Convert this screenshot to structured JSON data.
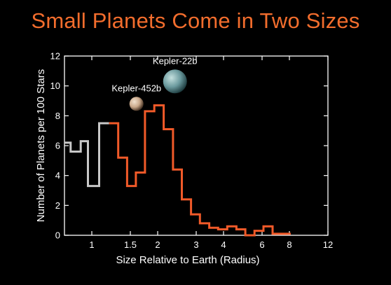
{
  "title": "Small Planets Come in Two Sizes",
  "colors": {
    "background": "#000000",
    "title": "#f26d2d",
    "axis": "#ffffff",
    "text": "#ffffff",
    "series_gray": "#c8c8c8",
    "series_orange": "#f15a29"
  },
  "chart_data": {
    "type": "line",
    "style": "step-histogram",
    "title": "Small Planets Come in Two Sizes",
    "xlabel": "Size Relative to Earth (Radius)",
    "ylabel": "Number of Planets per 100 Stars",
    "x_scale": "log",
    "xlim": [
      0.75,
      12
    ],
    "ylim": [
      0,
      12
    ],
    "x_ticks": [
      1,
      1.5,
      2,
      3,
      4,
      6,
      8,
      12
    ],
    "x_tick_labels": [
      "1",
      "1.5",
      "2",
      "3",
      "4",
      "6",
      "8",
      "12"
    ],
    "y_ticks": [
      0,
      2,
      4,
      6,
      8,
      10,
      12
    ],
    "y_tick_labels": [
      "0",
      "2",
      "4",
      "6",
      "8",
      "10",
      "12"
    ],
    "grid": false,
    "bin_edges": [
      0.75,
      0.8,
      0.89,
      0.96,
      1.08,
      1.2,
      1.32,
      1.45,
      1.59,
      1.75,
      1.93,
      2.13,
      2.35,
      2.58,
      2.84,
      3.12,
      3.44,
      3.78,
      4.16,
      4.58,
      5.03,
      5.54,
      6.09,
      6.7,
      7.37,
      8.11,
      8.92,
      9.81,
      10.8,
      11.9
    ],
    "series": [
      {
        "color": "#c8c8c8",
        "first_bin": 0,
        "values": [
          6.2,
          5.6,
          6.3,
          3.3,
          7.5
        ]
      },
      {
        "color": "#f15a29",
        "first_bin": 5,
        "values": [
          7.5,
          5.2,
          3.3,
          4.2,
          8.3,
          8.7,
          7.1,
          4.4,
          2.4,
          1.4,
          0.8,
          0.5,
          0.4,
          0.6,
          0.4,
          0.0,
          0.3,
          0.6,
          0.1,
          0.1
        ]
      }
    ],
    "annotations": [
      {
        "label": "Kepler-452b",
        "x": 1.6,
        "y": 8.8,
        "icon": "kepler-452b-planet-icon",
        "planet_color": "#c9a88a"
      },
      {
        "label": "Kepler-22b",
        "x": 2.4,
        "y": 10.3,
        "icon": "kepler-22b-planet-icon",
        "planet_color": "#6b9a9e"
      }
    ]
  }
}
